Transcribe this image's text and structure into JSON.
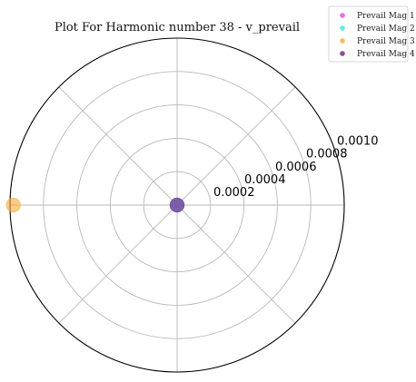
{
  "chart_data": {
    "type": "scatter",
    "projection": "polar",
    "title": "Plot For Harmonic number 38 - v_prevail",
    "rlim": [
      0,
      0.001
    ],
    "rticks": [
      "0.0002",
      "0.0004",
      "0.0006",
      "0.0008",
      "0.0010"
    ],
    "rtick_values": [
      0.0002,
      0.0004,
      0.0006,
      0.0008,
      0.001
    ],
    "angle_grid_deg": [
      0,
      45,
      90,
      135,
      180,
      225,
      270,
      315
    ],
    "grid": true,
    "legend_position": "top-right",
    "series": [
      {
        "name": "Prevail Mag 1",
        "color": "#ee44ee",
        "points": [
          {
            "theta_deg": 0,
            "r": 0.0
          }
        ]
      },
      {
        "name": "Prevail Mag 2",
        "color": "#33eedd",
        "points": [
          {
            "theta_deg": 0,
            "r": 0.0
          }
        ]
      },
      {
        "name": "Prevail Mag 3",
        "color": "#ffa733",
        "points": [
          {
            "theta_deg": 180,
            "r": 0.00098
          }
        ]
      },
      {
        "name": "Prevail Mag 4",
        "color": "#7a1a80",
        "points": [
          {
            "theta_deg": 0,
            "r": 0.0
          }
        ]
      }
    ]
  }
}
